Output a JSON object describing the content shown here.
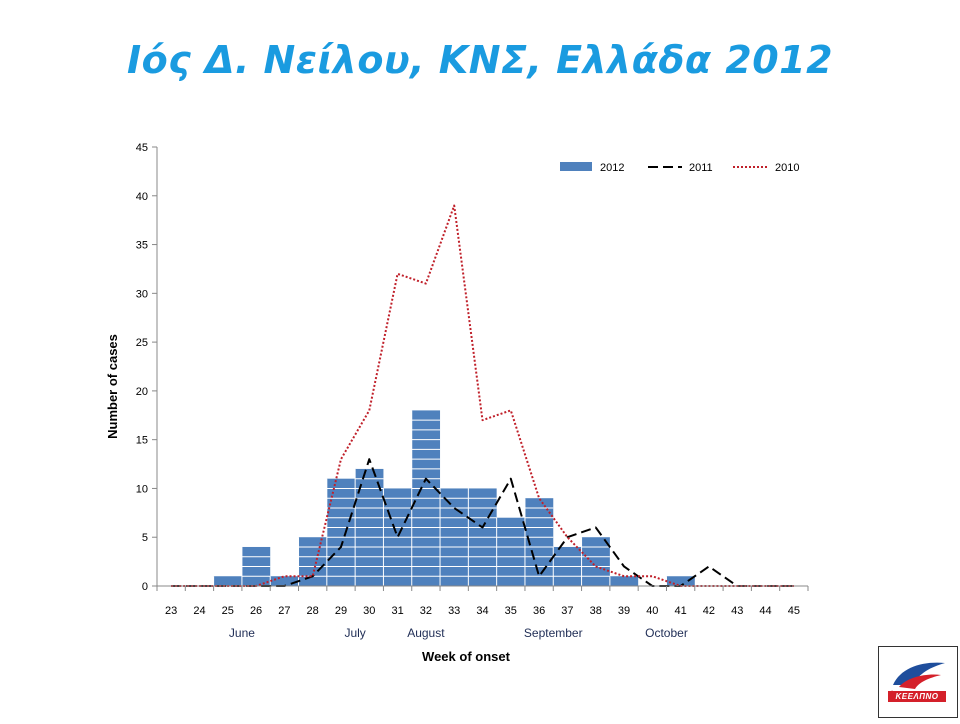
{
  "slide": {
    "title": "Ιός Δ. Νείλου, ΚΝΣ, Ελλάδα 2012"
  },
  "logo": {
    "label": "ΚΕΕΛΠΝΟ"
  },
  "chart_data": {
    "type": "bar",
    "title": "",
    "xlabel": "Week of onset",
    "ylabel": "Number of cases",
    "ylim": [
      0,
      45
    ],
    "yticks": [
      0,
      5,
      10,
      15,
      20,
      25,
      30,
      35,
      40,
      45
    ],
    "categories": [
      "23",
      "24",
      "25",
      "26",
      "27",
      "28",
      "29",
      "30",
      "31",
      "32",
      "33",
      "34",
      "35",
      "36",
      "37",
      "38",
      "39",
      "40",
      "41",
      "42",
      "43",
      "44",
      "45"
    ],
    "months": [
      {
        "label": "June",
        "at_week": "25.5"
      },
      {
        "label": "July",
        "at_week": "29.5"
      },
      {
        "label": "August",
        "at_week": "32"
      },
      {
        "label": "September",
        "at_week": "36.5"
      },
      {
        "label": "October",
        "at_week": "40.5"
      }
    ],
    "legend_position": "top-right",
    "series": [
      {
        "name": "2012",
        "type": "bar",
        "color": "#4f81bd",
        "values": [
          0,
          0,
          1,
          4,
          1,
          5,
          11,
          12,
          10,
          18,
          10,
          10,
          7,
          9,
          4,
          5,
          1,
          0,
          1,
          0,
          0,
          0,
          0
        ]
      },
      {
        "name": "2011",
        "type": "line",
        "style": "dashed",
        "color": "#000000",
        "values": [
          0,
          0,
          0,
          0,
          0,
          1,
          4,
          13,
          5,
          11,
          8,
          6,
          11,
          1,
          5,
          6,
          2,
          0,
          0,
          2,
          0,
          0,
          0
        ]
      },
      {
        "name": "2010",
        "type": "line",
        "style": "dotted",
        "color": "#c0202a",
        "values": [
          0,
          0,
          0,
          0,
          1,
          1,
          13,
          18,
          32,
          31,
          39,
          17,
          18,
          9,
          5,
          2,
          1,
          1,
          0,
          0,
          0,
          0,
          0
        ]
      }
    ]
  }
}
